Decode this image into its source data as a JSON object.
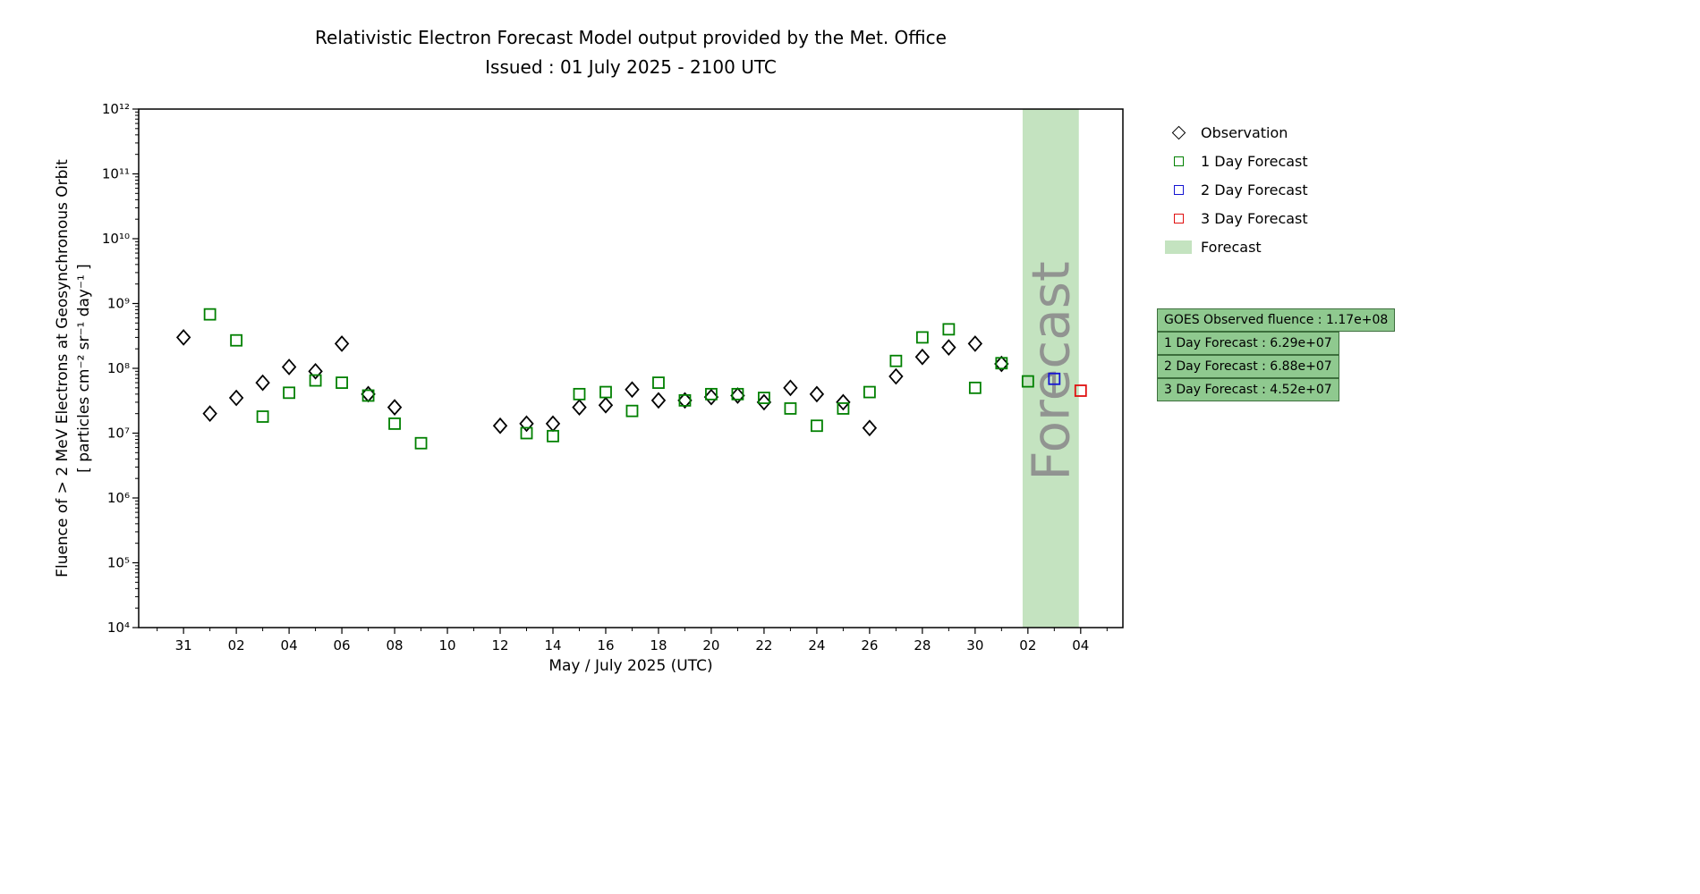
{
  "legend": {
    "items": [
      {
        "label": "Observation",
        "marker": "diamond",
        "color": "#000000"
      },
      {
        "label": "1 Day Forecast",
        "marker": "square",
        "color": "#008000"
      },
      {
        "label": "2 Day Forecast",
        "marker": "square",
        "color": "#1414d2"
      },
      {
        "label": "3 Day Forecast",
        "marker": "square",
        "color": "#e01010"
      },
      {
        "label": "Forecast",
        "marker": "patch",
        "color": "#c4e3c0"
      }
    ]
  },
  "infobox": {
    "bg": "#8fc98f",
    "border": "#3c6e3c",
    "lines": [
      "GOES Observed fluence : 1.17e+08",
      "1 Day Forecast : 6.29e+07",
      "2 Day Forecast : 6.88e+07",
      "3 Day Forecast : 4.52e+07"
    ]
  },
  "chart_data": {
    "type": "scatter",
    "y_scale": "log",
    "title": "Relativistic Electron Forecast Model output provided by the Met. Office",
    "subtitle": "Issued : 01 July 2025 - 2100 UTC",
    "xlabel": "May / July 2025 (UTC)",
    "ylabel": [
      "Fluence of > 2 MeV Electrons at Geosynchronous Orbit",
      "[ particles cm⁻² sr⁻¹ day⁻¹ ]"
    ],
    "x_axis": {
      "range_day": [
        -1.7,
        35.6
      ],
      "tick_positions_day": [
        0,
        2,
        4,
        6,
        8,
        10,
        12,
        14,
        16,
        18,
        20,
        22,
        24,
        26,
        28,
        30,
        32,
        34
      ],
      "tick_labels": [
        "31",
        "02",
        "04",
        "06",
        "08",
        "10",
        "12",
        "14",
        "16",
        "18",
        "20",
        "22",
        "24",
        "26",
        "28",
        "30",
        "02",
        "04"
      ]
    },
    "y_axis": {
      "exponent_range": [
        4,
        12
      ]
    },
    "forecast_band": {
      "start_day": 31.8,
      "end_day": 33.93,
      "label": "Forecast",
      "fill": "#c4e3c0",
      "label_color": "#8c8c8c"
    },
    "series": [
      {
        "name": "Observation",
        "marker": "diamond",
        "color": "#000000",
        "points": [
          [
            0,
            300000000.0
          ],
          [
            1,
            20000000.0
          ],
          [
            2,
            35000000.0
          ],
          [
            3,
            60000000.0
          ],
          [
            4,
            105000000.0
          ],
          [
            5,
            90000000.0
          ],
          [
            6,
            240000000.0
          ],
          [
            7,
            40000000.0
          ],
          [
            8,
            25000000.0
          ],
          [
            12,
            13000000.0
          ],
          [
            13,
            14000000.0
          ],
          [
            14,
            14000000.0
          ],
          [
            15,
            25000000.0
          ],
          [
            16,
            27000000.0
          ],
          [
            17,
            47000000.0
          ],
          [
            18,
            32000000.0
          ],
          [
            19,
            32000000.0
          ],
          [
            20,
            36000000.0
          ],
          [
            21,
            38000000.0
          ],
          [
            22,
            30000000.0
          ],
          [
            23,
            50000000.0
          ],
          [
            24,
            40000000.0
          ],
          [
            25,
            30000000.0
          ],
          [
            26,
            12000000.0
          ],
          [
            27,
            75000000.0
          ],
          [
            28,
            150000000.0
          ],
          [
            29,
            210000000.0
          ],
          [
            30,
            240000000.0
          ],
          [
            31,
            117000000.0
          ]
        ]
      },
      {
        "name": "1 Day Forecast",
        "marker": "square",
        "color": "#008000",
        "points": [
          [
            1,
            680000000.0
          ],
          [
            2,
            270000000.0
          ],
          [
            3,
            18000000.0
          ],
          [
            4,
            42000000.0
          ],
          [
            5,
            65000000.0
          ],
          [
            6,
            60000000.0
          ],
          [
            7,
            38000000.0
          ],
          [
            8,
            14000000.0
          ],
          [
            9,
            7000000.0
          ],
          [
            13,
            10000000.0
          ],
          [
            14,
            9000000.0
          ],
          [
            15,
            40000000.0
          ],
          [
            16,
            43000000.0
          ],
          [
            17,
            22000000.0
          ],
          [
            18,
            60000000.0
          ],
          [
            19,
            32000000.0
          ],
          [
            20,
            40000000.0
          ],
          [
            21,
            40000000.0
          ],
          [
            22,
            35000000.0
          ],
          [
            23,
            24000000.0
          ],
          [
            24,
            13000000.0
          ],
          [
            25,
            24000000.0
          ],
          [
            26,
            43000000.0
          ],
          [
            27,
            130000000.0
          ],
          [
            28,
            300000000.0
          ],
          [
            29,
            400000000.0
          ],
          [
            30,
            50000000.0
          ],
          [
            31,
            120000000.0
          ],
          [
            32,
            62900000.0
          ]
        ]
      },
      {
        "name": "2 Day Forecast",
        "marker": "square",
        "color": "#1414d2",
        "points": [
          [
            33,
            68800000.0
          ]
        ]
      },
      {
        "name": "3 Day Forecast",
        "marker": "square",
        "color": "#e01010",
        "points": [
          [
            34,
            45200000.0
          ]
        ]
      }
    ]
  }
}
